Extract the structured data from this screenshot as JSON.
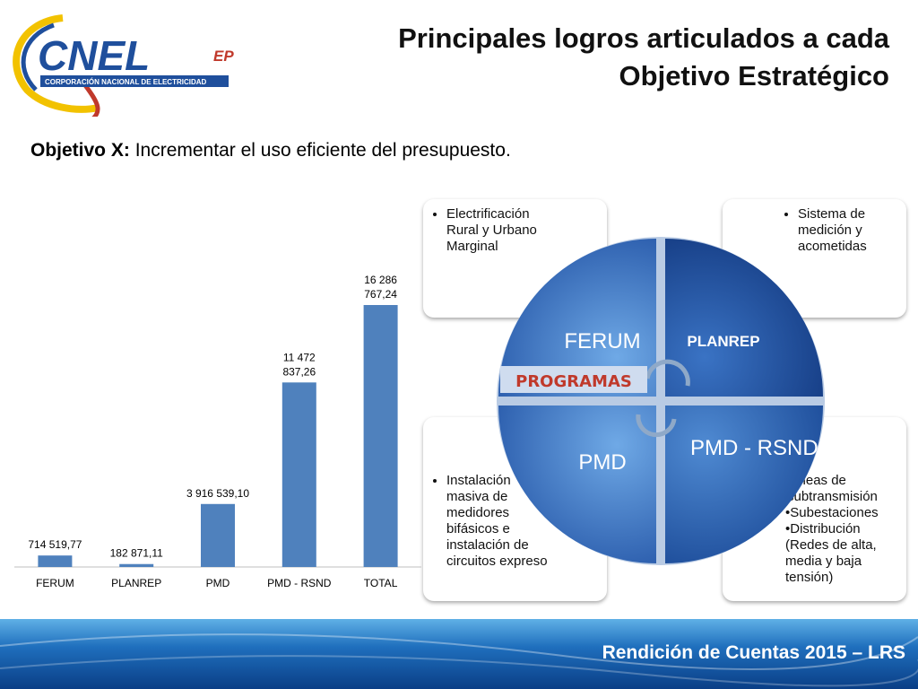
{
  "header": {
    "logo_text": "CNEL",
    "logo_suffix": "EP",
    "logo_subtitle": "CORPORACIÓN NACIONAL DE ELECTRICIDAD",
    "title_line1": "Principales logros articulados a cada",
    "title_line2": "Objetivo Estratégico"
  },
  "objective": {
    "label": "Objetivo X:",
    "text": "Incrementar el uso eficiente del presupuesto."
  },
  "chart_data": {
    "type": "bar",
    "categories": [
      "FERUM",
      "PLANREP",
      "PMD",
      "PMD - RSND",
      "TOTAL"
    ],
    "values": [
      714519.77,
      182871.11,
      3916539.1,
      11472837.26,
      16286767.24
    ],
    "data_labels": [
      [
        "714 519,77"
      ],
      [
        "182 871,11"
      ],
      [
        "3 916 539,10"
      ],
      [
        "11 472",
        "837,26"
      ],
      [
        "16 286",
        "767,24"
      ]
    ],
    "color": "#4f81bd",
    "ylim": [
      0,
      16286767.24
    ],
    "grid": false
  },
  "cards": {
    "ferum": [
      "Electrificación Rural y Urbano Marginal"
    ],
    "planrep": [
      "Sistema de medición y acometidas"
    ],
    "pmd": [
      "Instalación masiva de medidores bifásicos e instalación de circuitos expreso"
    ],
    "rsnd": [
      "Líneas de subtransmisión",
      "Subestaciones",
      "Distribución (Redes de alta, media y baja tensión)"
    ]
  },
  "diagram": {
    "q1": "FERUM",
    "q2": "PLANREP",
    "q3": "PMD",
    "q4": "PMD - RSND",
    "center": "PROGRAMAS",
    "colors": {
      "blue_dark": "#1f4f9c",
      "blue_light": "#4e90d6",
      "center_text": "#c0392b"
    }
  },
  "footer": {
    "text": "Rendición de Cuentas 2015 – LRS"
  }
}
